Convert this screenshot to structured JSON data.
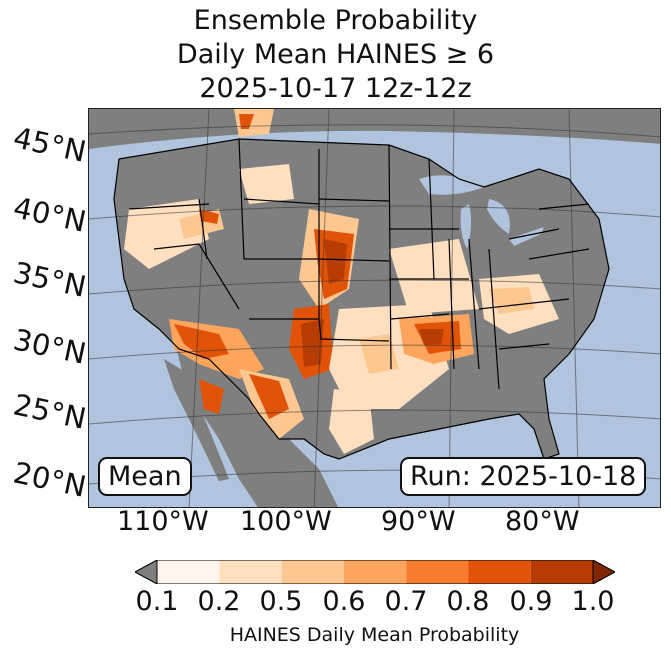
{
  "title": {
    "line1": "Ensemble Probability",
    "line2": "Daily Mean HAINES ≥ 6",
    "line3": "2025-10-17 12z-12z"
  },
  "map": {
    "latitude_labels": [
      "45°N",
      "40°N",
      "35°N",
      "30°N",
      "25°N",
      "20°N"
    ],
    "longitude_labels": [
      "110°W",
      "100°W",
      "90°W",
      "80°W"
    ],
    "mean_box": "Mean",
    "run_box": "Run: 2025-10-18",
    "colors": {
      "ocean": "#b0c4de",
      "land_below_threshold": "#7f7f7f",
      "prob_0_1": "#fff5eb",
      "prob_0_2": "#fee0c1",
      "prob_0_5": "#fdc791",
      "prob_0_6": "#fda55d",
      "prob_0_7": "#f67d2f",
      "prob_0_8": "#e05309",
      "prob_0_9": "#b53c02"
    }
  },
  "colorbar": {
    "tick_labels": [
      "0.1",
      "0.2",
      "0.5",
      "0.6",
      "0.7",
      "0.8",
      "0.9",
      "1.0"
    ],
    "segment_colors": [
      "#fff5eb",
      "#fee0c1",
      "#fdc791",
      "#fda55d",
      "#f67d2f",
      "#e05309",
      "#b53c02"
    ],
    "under_color": "#7f7f7f",
    "over_color": "#7f2704",
    "label": "HAINES Daily Mean Probability"
  }
}
